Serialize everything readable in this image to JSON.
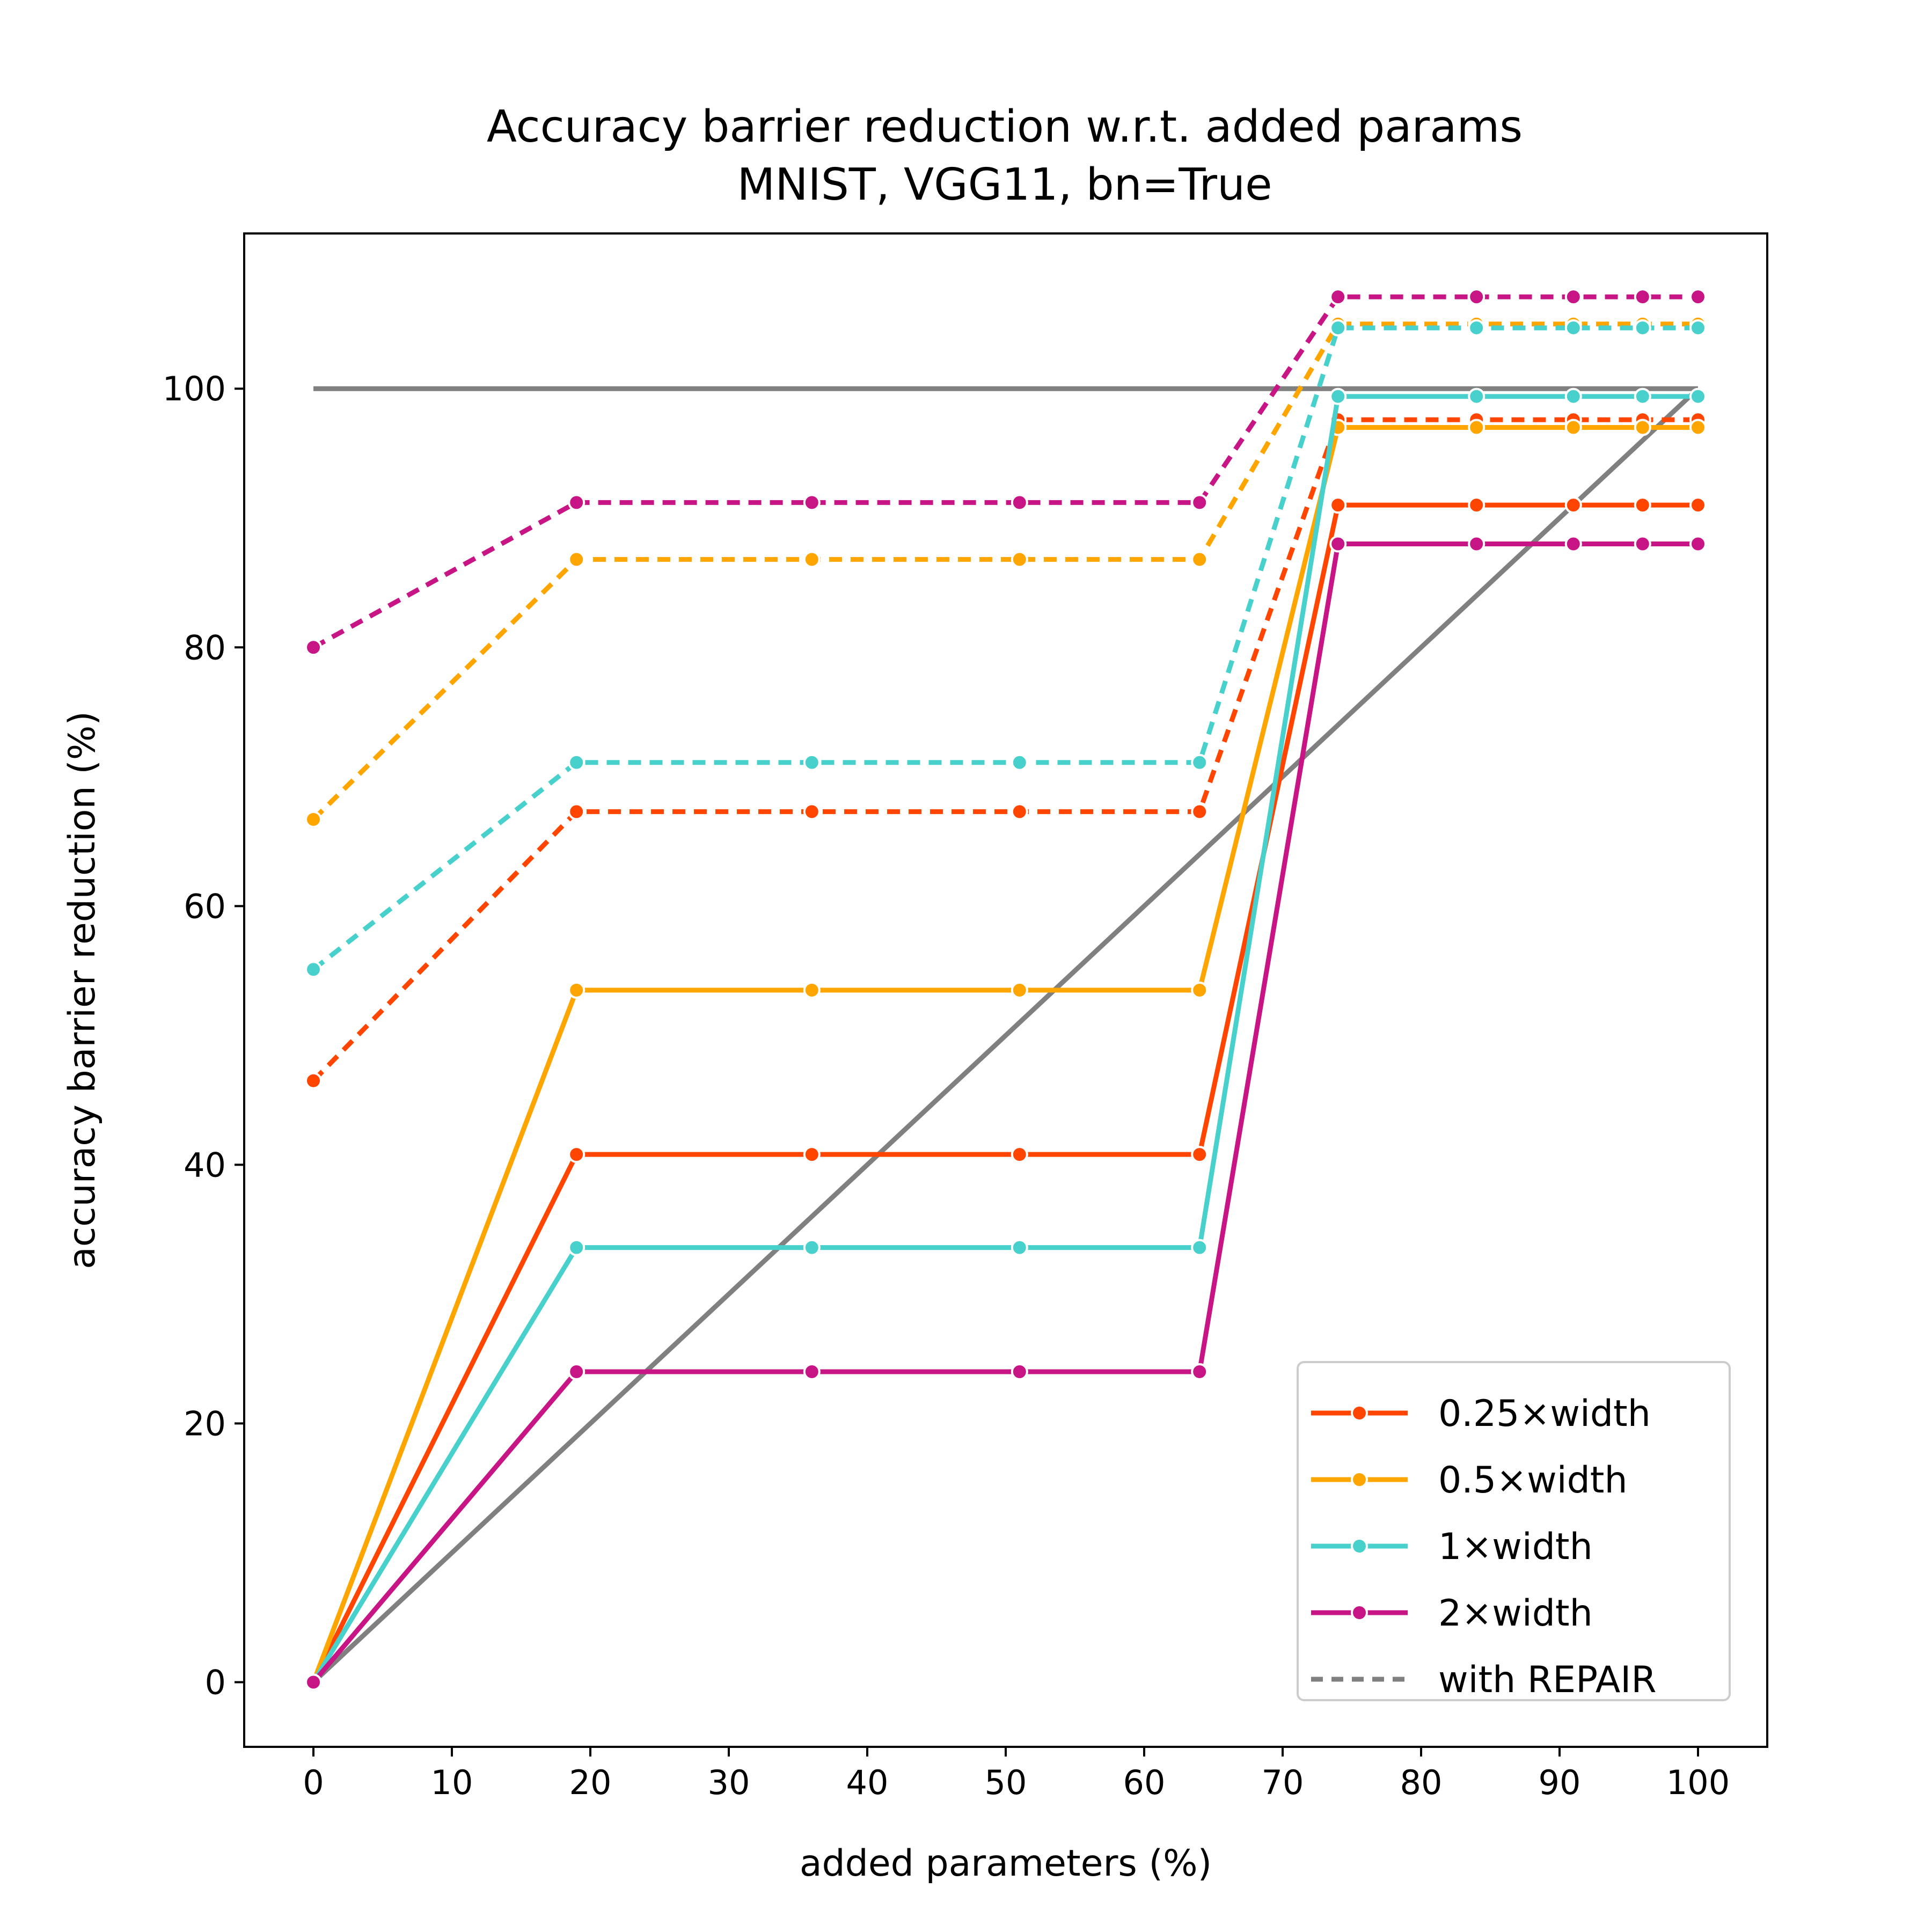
{
  "chart_data": {
    "type": "line",
    "title": "Accuracy barrier reduction w.r.t. added params",
    "subtitle": "MNIST, VGG11, bn=True",
    "xlabel": "added parameters (%)",
    "ylabel": "accuracy barrier reduction (%)",
    "xlim": [
      -5,
      105
    ],
    "ylim": [
      -5,
      112
    ],
    "xticks": [
      0,
      10,
      20,
      30,
      40,
      50,
      60,
      70,
      80,
      90,
      100
    ],
    "yticks": [
      0,
      20,
      40,
      60,
      80,
      100
    ],
    "grid": false,
    "legend_position": "lower-right",
    "legend": [
      "0.25×width",
      "0.5×width",
      "1×width",
      "2×width",
      "with REPAIR"
    ],
    "x": [
      0,
      19,
      36,
      51,
      64,
      74,
      84,
      91,
      96,
      100
    ],
    "reference_lines": [
      {
        "x": [
          0,
          100
        ],
        "y": [
          100,
          100
        ],
        "color": "#808080"
      },
      {
        "x": [
          0,
          100
        ],
        "y": [
          0,
          100
        ],
        "color": "#808080"
      }
    ],
    "series": [
      {
        "name": "0.25×width",
        "color": "#FF4500",
        "style": "solid",
        "values": [
          0,
          40.8,
          40.8,
          40.8,
          40.8,
          91.0,
          91.0,
          91.0,
          91.0,
          91.0
        ]
      },
      {
        "name": "0.25×width",
        "color": "#FF4500",
        "style": "dashed",
        "values": [
          46.5,
          67.3,
          67.3,
          67.3,
          67.3,
          97.6,
          97.6,
          97.6,
          97.6,
          97.6
        ]
      },
      {
        "name": "0.5×width",
        "color": "#FFA500",
        "style": "solid",
        "values": [
          0,
          53.5,
          53.5,
          53.5,
          53.5,
          97.0,
          97.0,
          97.0,
          97.0,
          97.0
        ]
      },
      {
        "name": "0.5×width",
        "color": "#FFA500",
        "style": "dashed",
        "values": [
          66.7,
          86.8,
          86.8,
          86.8,
          86.8,
          105.0,
          105.0,
          105.0,
          105.0,
          105.0
        ]
      },
      {
        "name": "1×width",
        "color": "#48D1CC",
        "style": "solid",
        "values": [
          0,
          33.6,
          33.6,
          33.6,
          33.6,
          99.4,
          99.4,
          99.4,
          99.4,
          99.4
        ]
      },
      {
        "name": "1×width",
        "color": "#48D1CC",
        "style": "dashed",
        "values": [
          55.1,
          71.1,
          71.1,
          71.1,
          71.1,
          104.7,
          104.7,
          104.7,
          104.7,
          104.7
        ]
      },
      {
        "name": "2×width",
        "color": "#C71585",
        "style": "solid",
        "values": [
          0,
          24.0,
          24.0,
          24.0,
          24.0,
          88.0,
          88.0,
          88.0,
          88.0,
          88.0
        ]
      },
      {
        "name": "2×width",
        "color": "#C71585",
        "style": "dashed",
        "values": [
          80.0,
          91.2,
          91.2,
          91.2,
          91.2,
          107.1,
          107.1,
          107.1,
          107.1,
          107.1
        ]
      }
    ]
  }
}
